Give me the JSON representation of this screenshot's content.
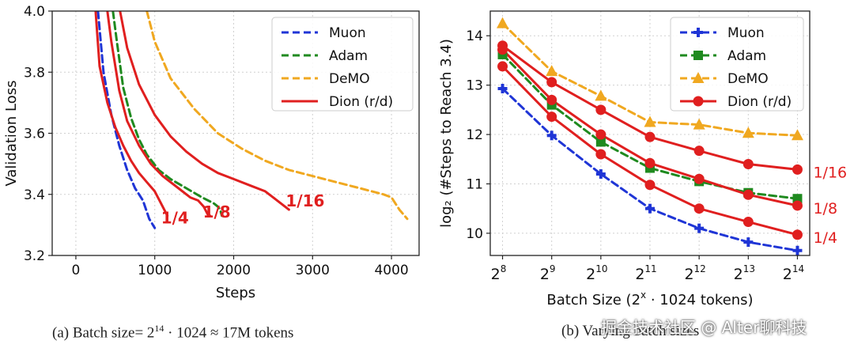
{
  "chart_data": [
    {
      "type": "line",
      "xlabel": "Steps",
      "ylabel": "Validation Loss",
      "xlim": [
        -300,
        4350
      ],
      "ylim": [
        3.2,
        4.0
      ],
      "xticks": [
        0,
        1000,
        2000,
        3000,
        4000
      ],
      "yticks": [
        3.2,
        3.4,
        3.6,
        3.8,
        4.0
      ],
      "xtick_labels": [
        "0",
        "1000",
        "2000",
        "3000",
        "4000"
      ],
      "ytick_labels": [
        "3.2",
        "3.4",
        "3.6",
        "3.8",
        "4.0"
      ],
      "grid": true,
      "legend_position": "top-right",
      "legend": [
        "Muon",
        "Adam",
        "DeMO",
        "Dion (r/d)"
      ],
      "series": [
        {
          "name": "Muon",
          "color": "#1f35d6",
          "dash": "dashed",
          "x": [
            280,
            350,
            450,
            550,
            650,
            750,
            850,
            930,
            1000
          ],
          "y": [
            4.0,
            3.8,
            3.66,
            3.56,
            3.48,
            3.42,
            3.38,
            3.32,
            3.29
          ]
        },
        {
          "name": "Adam",
          "color": "#1f8a1f",
          "dash": "dashed",
          "x": [
            470,
            520,
            600,
            700,
            800,
            900,
            1050,
            1200,
            1400,
            1600,
            1750,
            1800,
            1830,
            1850
          ],
          "y": [
            4.0,
            3.9,
            3.75,
            3.65,
            3.58,
            3.53,
            3.48,
            3.45,
            3.42,
            3.39,
            3.37,
            3.36,
            3.35,
            3.33
          ]
        },
        {
          "name": "DeMO",
          "color": "#f0a820",
          "dash": "dashed",
          "x": [
            900,
            1000,
            1200,
            1500,
            1800,
            2100,
            2400,
            2700,
            3000,
            3300,
            3600,
            3900,
            4000,
            4100,
            4200
          ],
          "y": [
            4.0,
            3.9,
            3.78,
            3.68,
            3.6,
            3.55,
            3.51,
            3.48,
            3.46,
            3.44,
            3.42,
            3.4,
            3.39,
            3.35,
            3.32
          ]
        },
        {
          "name": "Dion (r/d) 1/4",
          "color": "#e01f1f",
          "dash": "solid",
          "x": [
            250,
            300,
            400,
            500,
            600,
            700,
            800,
            900,
            1000,
            1080,
            1120,
            1160
          ],
          "y": [
            4.0,
            3.82,
            3.7,
            3.62,
            3.56,
            3.51,
            3.47,
            3.44,
            3.41,
            3.37,
            3.35,
            3.33
          ]
        },
        {
          "name": "Dion (r/d) 1/8",
          "color": "#e01f1f",
          "dash": "solid",
          "x": [
            400,
            450,
            550,
            650,
            800,
            950,
            1100,
            1300,
            1450,
            1550,
            1620,
            1680,
            1700
          ],
          "y": [
            4.0,
            3.9,
            3.74,
            3.64,
            3.56,
            3.5,
            3.46,
            3.42,
            3.39,
            3.38,
            3.36,
            3.33,
            3.33
          ]
        },
        {
          "name": "Dion (r/d) 1/16",
          "color": "#e01f1f",
          "dash": "solid",
          "x": [
            560,
            650,
            800,
            1000,
            1200,
            1400,
            1600,
            1800,
            2000,
            2200,
            2400,
            2500,
            2600,
            2700
          ],
          "y": [
            4.0,
            3.88,
            3.76,
            3.66,
            3.59,
            3.54,
            3.5,
            3.47,
            3.45,
            3.43,
            3.41,
            3.39,
            3.37,
            3.35
          ]
        }
      ],
      "annotations": [
        {
          "text": "1/4",
          "x": 1120,
          "y": 3.31
        },
        {
          "text": "1/8",
          "x": 1650,
          "y": 3.33
        },
        {
          "text": "1/16",
          "x": 2700,
          "y": 3.35
        }
      ],
      "caption": {
        "prefix": "(a) Batch size= 2",
        "exp": "14",
        "suffix": " · 1024 ≈ 17M tokens"
      }
    },
    {
      "type": "line",
      "xlabel": "Batch Size (2",
      "xlabel_exp": "x",
      "xlabel_suffix": " · 1024 tokens)",
      "ylabel": "log₂ (#Steps to Reach 3.4)",
      "xlim": [
        7.75,
        14.25
      ],
      "ylim": [
        9.55,
        14.5
      ],
      "xticks": [
        8,
        9,
        10,
        11,
        12,
        13,
        14
      ],
      "xtick_base": "2",
      "xtick_exps": [
        "8",
        "9",
        "10",
        "11",
        "12",
        "13",
        "14"
      ],
      "yticks": [
        10,
        11,
        12,
        13,
        14
      ],
      "ytick_labels": [
        "10",
        "11",
        "12",
        "13",
        "14"
      ],
      "grid": true,
      "legend_position": "top-right",
      "legend": [
        "Muon",
        "Adam",
        "DeMO",
        "Dion (r/d)"
      ],
      "series": [
        {
          "name": "Muon",
          "color": "#1f35d6",
          "dash": "dashed",
          "marker": "plus",
          "x": [
            8,
            9,
            10,
            11,
            12,
            13,
            14
          ],
          "y": [
            12.93,
            11.98,
            11.2,
            10.5,
            10.1,
            9.82,
            9.65
          ]
        },
        {
          "name": "Adam",
          "color": "#1f8a1f",
          "dash": "dashed",
          "marker": "square",
          "x": [
            8,
            9,
            10,
            11,
            12,
            13,
            14
          ],
          "y": [
            13.62,
            12.6,
            11.85,
            11.32,
            11.05,
            10.82,
            10.7
          ]
        },
        {
          "name": "DeMO",
          "color": "#f0a820",
          "dash": "dashed",
          "marker": "triangle",
          "x": [
            8,
            9,
            10,
            11,
            12,
            13,
            14
          ],
          "y": [
            14.25,
            13.28,
            12.78,
            12.25,
            12.2,
            12.03,
            11.98
          ]
        },
        {
          "name": "Dion (r/d) 1/16",
          "color": "#e01f1f",
          "dash": "solid",
          "marker": "circle",
          "x": [
            8,
            9,
            10,
            11,
            12,
            13,
            14
          ],
          "y": [
            13.8,
            13.06,
            12.5,
            11.95,
            11.67,
            11.4,
            11.29
          ]
        },
        {
          "name": "Dion (r/d) 1/8",
          "color": "#e01f1f",
          "dash": "solid",
          "marker": "circle",
          "x": [
            8,
            9,
            10,
            11,
            12,
            13,
            14
          ],
          "y": [
            13.72,
            12.7,
            12.0,
            11.42,
            11.1,
            10.78,
            10.56
          ]
        },
        {
          "name": "Dion (r/d) 1/4",
          "color": "#e01f1f",
          "dash": "solid",
          "marker": "circle",
          "x": [
            8,
            9,
            10,
            11,
            12,
            13,
            14
          ],
          "y": [
            13.38,
            12.36,
            11.6,
            10.98,
            10.5,
            10.23,
            9.97
          ]
        }
      ],
      "annotations": [
        {
          "text": "1/16",
          "x": 14,
          "y": 11.29
        },
        {
          "text": "1/8",
          "x": 14,
          "y": 10.56
        },
        {
          "text": "1/4",
          "x": 14,
          "y": 9.97
        }
      ],
      "caption": {
        "text": "(b) Varying batch sizes"
      }
    }
  ],
  "watermark": "掘金技术社区 @ Alter聊科技"
}
